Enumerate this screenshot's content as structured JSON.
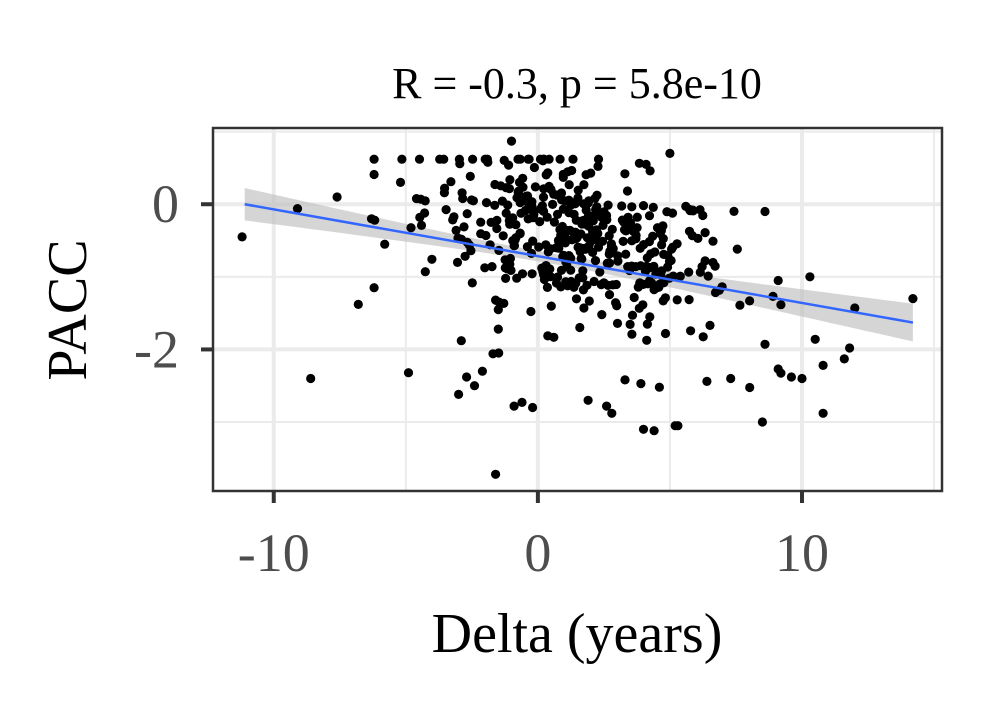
{
  "chart_data": {
    "type": "scatter",
    "title": "R = -0.3, p = 5.8e-10",
    "xlabel": "Delta (years)",
    "ylabel": "PACC",
    "xlim": [
      -12.3,
      15.3
    ],
    "ylim": [
      -3.95,
      1.05
    ],
    "x_ticks": [
      -10,
      0,
      10
    ],
    "x_tick_labels": [
      "-10",
      "0",
      "10"
    ],
    "y_ticks": [
      0,
      -2
    ],
    "y_tick_labels": [
      "0",
      "-2"
    ],
    "grid": true,
    "legend": "none",
    "colors": {
      "points": "#000000",
      "regression_line": "#3366FF",
      "confidence_band": "#bfbfbf",
      "grid": "#ebebeb",
      "panel_border": "#333333"
    },
    "regression": {
      "x": [
        -11.1,
        14.2
      ],
      "y": [
        0.0,
        -1.63
      ],
      "ci_halfwidth_at_ends": 0.26,
      "ci_halfwidth_min": 0.07,
      "ci_center_x": 0.5
    },
    "points": {
      "outliers": [
        [
          -11.2,
          -0.45
        ],
        [
          -9.1,
          -0.06
        ],
        [
          -8.6,
          -2.4
        ],
        [
          -7.6,
          0.1
        ],
        [
          -6.8,
          -1.38
        ],
        [
          -6.2,
          -1.15
        ],
        [
          -6.3,
          -0.2
        ],
        [
          -5.8,
          -0.55
        ],
        [
          -5.2,
          0.3
        ],
        [
          -4.9,
          -2.32
        ],
        [
          -3.0,
          -2.62
        ],
        [
          -2.9,
          -1.88
        ],
        [
          -2.7,
          -2.38
        ],
        [
          -2.4,
          -2.5
        ],
        [
          -2.1,
          -2.3
        ],
        [
          -1.6,
          -1.32
        ],
        [
          -1.5,
          -1.72
        ],
        [
          -1.7,
          -2.06
        ],
        [
          -1.6,
          -3.72
        ],
        [
          -0.9,
          -2.78
        ],
        [
          -0.6,
          -2.73
        ],
        [
          -0.2,
          -2.8
        ],
        [
          -1.0,
          0.87
        ],
        [
          1.9,
          -2.7
        ],
        [
          2.6,
          -2.78
        ],
        [
          2.8,
          -2.88
        ],
        [
          3.3,
          -2.42
        ],
        [
          3.9,
          -2.47
        ],
        [
          4.0,
          -3.1
        ],
        [
          4.4,
          -3.12
        ],
        [
          4.6,
          -2.52
        ],
        [
          5.2,
          -3.05
        ],
        [
          6.4,
          -2.44
        ],
        [
          7.3,
          -2.4
        ],
        [
          8.6,
          -1.93
        ],
        [
          8.5,
          -3.0
        ],
        [
          9.1,
          -2.27
        ],
        [
          9.6,
          -2.38
        ],
        [
          10.0,
          -2.4
        ],
        [
          10.3,
          -1.0
        ],
        [
          10.8,
          -2.22
        ],
        [
          10.8,
          -2.88
        ],
        [
          11.6,
          -2.13
        ],
        [
          11.8,
          -1.98
        ],
        [
          12.0,
          -1.43
        ],
        [
          14.2,
          -1.3
        ],
        [
          8.9,
          -1.27
        ],
        [
          8.6,
          -0.1
        ],
        [
          9.1,
          -1.05
        ],
        [
          5.0,
          0.7
        ],
        [
          5.3,
          -3.05
        ],
        [
          10.5,
          -1.86
        ]
      ]
    }
  }
}
